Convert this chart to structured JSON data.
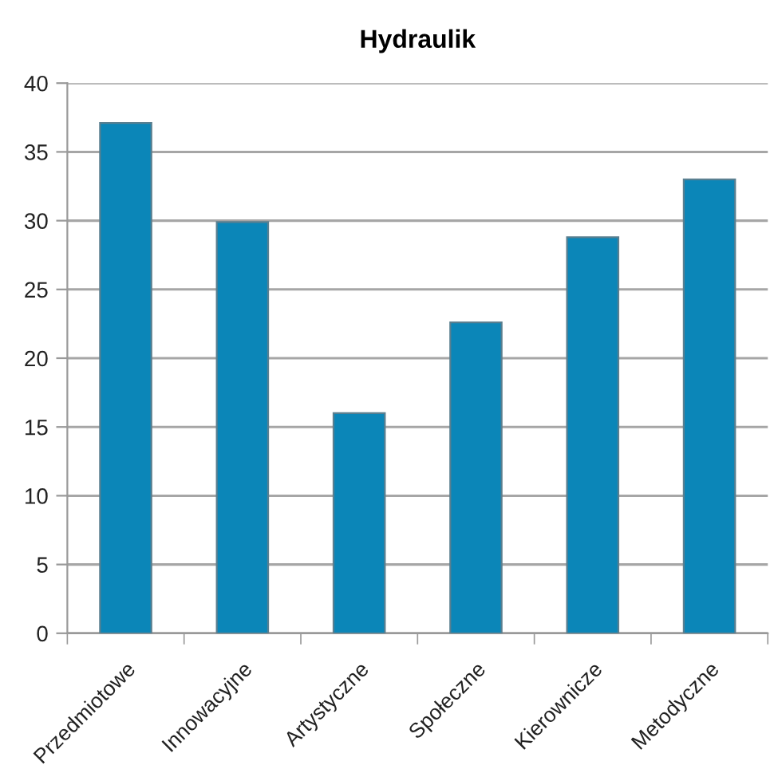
{
  "chart_data": {
    "type": "bar",
    "title": "Hydraulik",
    "categories": [
      "Przedmiotowe",
      "Innowacyjne",
      "Artystyczne",
      "Społeczne",
      "Kierownicze",
      "Metodyczne"
    ],
    "values": [
      37.1,
      29.9,
      16.0,
      22.6,
      28.8,
      33.0
    ],
    "color": "#0b86b8",
    "ylim": [
      0,
      40
    ],
    "yticks": [
      0,
      5,
      10,
      15,
      20,
      25,
      30,
      35,
      40
    ],
    "grid": "y"
  }
}
